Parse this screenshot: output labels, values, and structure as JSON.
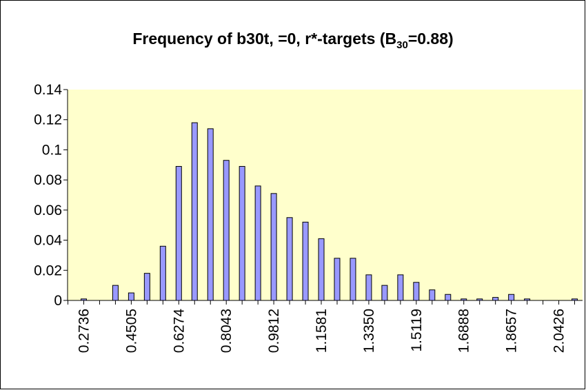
{
  "chart_data": {
    "type": "bar",
    "title": [
      "Frequency of b30t,  =0, r*-targets (B",
      "30",
      "=0.88)"
    ],
    "categories": [
      "0.2736",
      null,
      null,
      "0.4505",
      null,
      null,
      "0.6274",
      null,
      null,
      "0.8043",
      null,
      null,
      "0.9812",
      null,
      null,
      "1.1581",
      null,
      null,
      "1.3350",
      null,
      null,
      "1.5119",
      null,
      null,
      "1.6888",
      null,
      null,
      "1.8657",
      null,
      null,
      "2.0426",
      null
    ],
    "values": [
      0.001,
      0,
      0.01,
      0.005,
      0.018,
      0.036,
      0.089,
      0.118,
      0.114,
      0.093,
      0.089,
      0.076,
      0.071,
      0.055,
      0.052,
      0.041,
      0.028,
      0.028,
      0.017,
      0.01,
      0.017,
      0.012,
      0.007,
      0.004,
      0.001,
      0.001,
      0.002,
      0.004,
      0.001,
      0,
      0,
      0.001
    ],
    "color": "#9999ff",
    "ylim": [
      0,
      0.14
    ],
    "yticks": [
      0,
      0.02,
      0.04,
      0.06,
      0.08,
      0.1,
      0.12,
      0.14
    ]
  }
}
